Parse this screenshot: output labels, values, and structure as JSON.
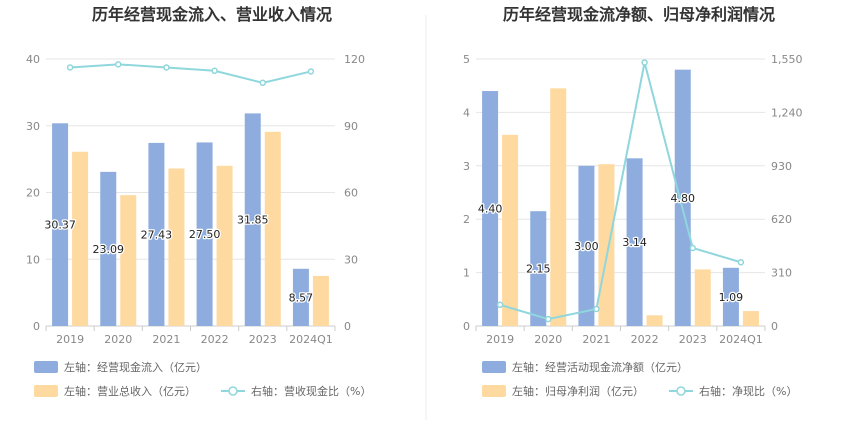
{
  "colors": {
    "bar1": "#8eadde",
    "bar2": "#fed9a0",
    "line": "#8fd7dc",
    "grid": "#e6e6e6",
    "axis": "#cccccc",
    "divider": "#eeeeee"
  },
  "chart_data": [
    {
      "type": "bar",
      "title": "历年经营现金流入、营业收入情况",
      "categories": [
        "2019",
        "2020",
        "2021",
        "2022",
        "2023",
        "2024Q1"
      ],
      "ylim_left": [
        0,
        40
      ],
      "left_ticks": [
        "0",
        "10",
        "20",
        "30",
        "40"
      ],
      "ylim_right": [
        0,
        120
      ],
      "right_ticks": [
        "0",
        "30",
        "60",
        "90",
        "120"
      ],
      "series": [
        {
          "name": "左轴：经营现金流入（亿元）",
          "kind": "bar",
          "axis": "left",
          "values": [
            30.37,
            23.09,
            27.43,
            27.5,
            31.85,
            8.57
          ],
          "labels": [
            "30.37",
            "23.09",
            "27.43",
            "27.50",
            "31.85",
            "8.57"
          ]
        },
        {
          "name": "左轴：营业总收入（亿元）",
          "kind": "bar",
          "axis": "left",
          "values": [
            26.1,
            19.6,
            23.6,
            24.0,
            29.1,
            7.5
          ]
        },
        {
          "name": "右轴：营收现金比（%）",
          "kind": "line",
          "axis": "right",
          "values": [
            116.2,
            117.6,
            116.2,
            114.7,
            109.3,
            114.4
          ]
        }
      ]
    },
    {
      "type": "bar",
      "title": "历年经营现金流净额、归母净利润情况",
      "categories": [
        "2019",
        "2020",
        "2021",
        "2022",
        "2023",
        "2024Q1"
      ],
      "ylim_left": [
        0,
        5
      ],
      "left_ticks": [
        "0",
        "1",
        "2",
        "3",
        "4",
        "5"
      ],
      "ylim_right": [
        0,
        1550
      ],
      "right_ticks": [
        "0",
        "310",
        "620",
        "930",
        "1,240",
        "1,550"
      ],
      "series": [
        {
          "name": "左轴：经营活动现金流净额（亿元）",
          "kind": "bar",
          "axis": "left",
          "values": [
            4.4,
            2.15,
            3.0,
            3.14,
            4.8,
            1.09
          ],
          "labels": [
            "4.40",
            "2.15",
            "3.00",
            "3.14",
            "4.80",
            "1.09"
          ]
        },
        {
          "name": "左轴：归母净利润（亿元）",
          "kind": "bar",
          "axis": "left",
          "values": [
            3.58,
            4.45,
            3.03,
            0.2,
            1.06,
            0.28
          ]
        },
        {
          "name": "右轴：净现比（%）",
          "kind": "line",
          "axis": "right",
          "values": [
            123,
            40,
            99,
            1530,
            453,
            370
          ]
        }
      ]
    }
  ]
}
